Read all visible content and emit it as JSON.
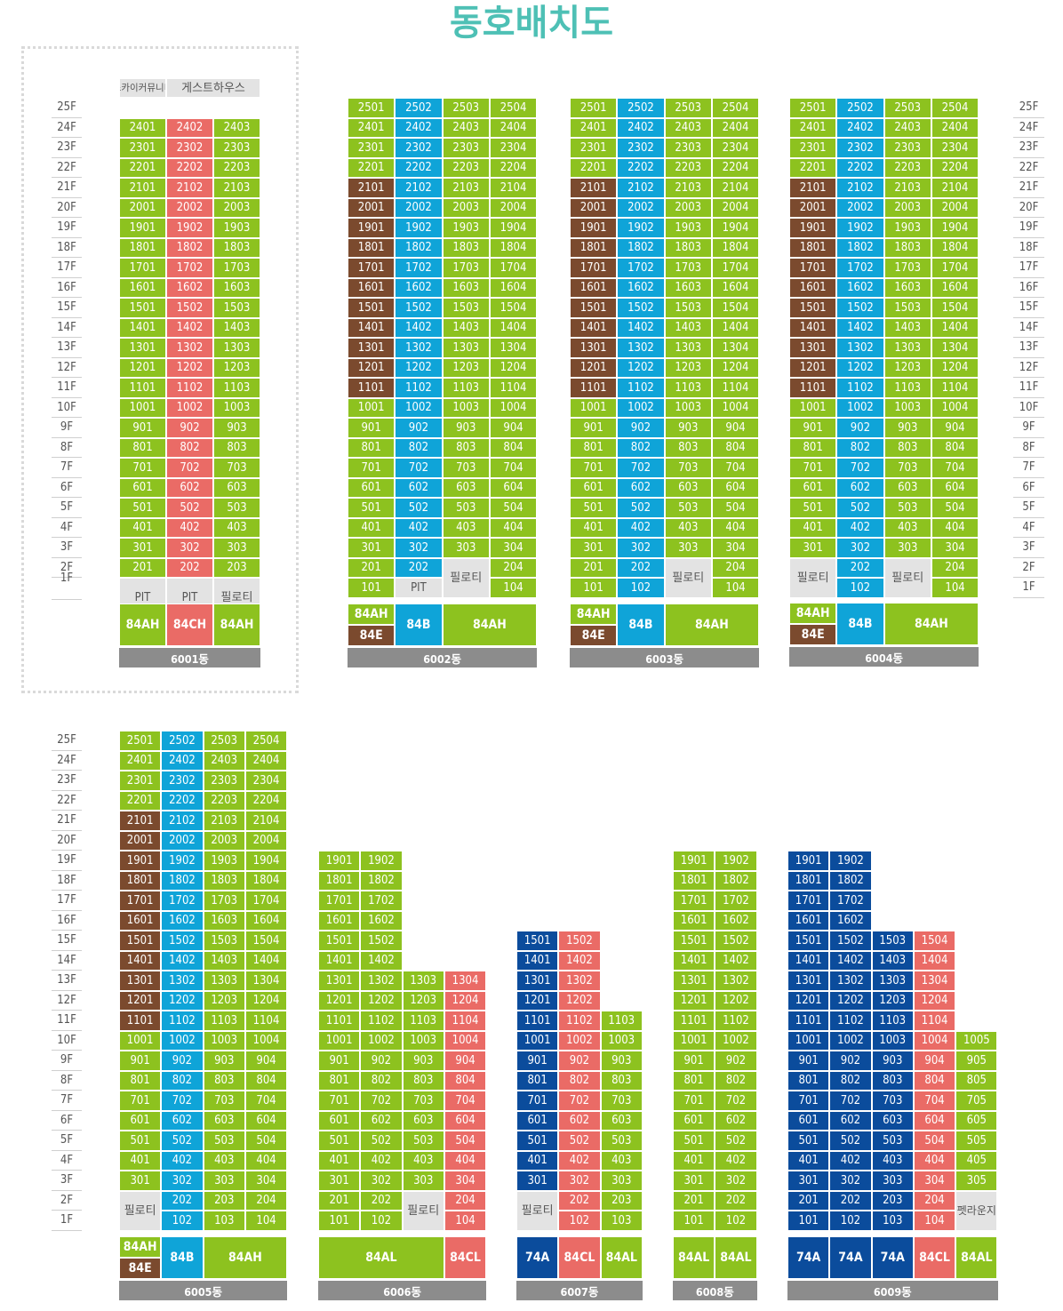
{
  "title": "동호배치도",
  "colors": {
    "title": "#4ec0b5",
    "green": "#8dc21f",
    "blue": "#0fa4d8",
    "salmon": "#ea6b66",
    "brown": "#7b4a2e",
    "navy": "#0b4c9c",
    "gray": "#e3e3e3",
    "bar": "#8c8c8c",
    "dark_text": "#555555"
  },
  "floor_labels": [
    "25F",
    "24F",
    "23F",
    "22F",
    "21F",
    "20F",
    "19F",
    "18F",
    "17F",
    "16F",
    "15F",
    "14F",
    "13F",
    "12F",
    "11F",
    "10F",
    "9F",
    "8F",
    "7F",
    "6F",
    "5F",
    "4F",
    "3F",
    "2F",
    "1F"
  ],
  "types_legend": [
    "84AH",
    "84B",
    "84E",
    "84CH",
    "84AL",
    "84CL",
    "74A"
  ],
  "buildings": [
    {
      "name": "6001동",
      "header": [
        "스카이커뮤니티",
        "게스트하우스"
      ],
      "columns": [
        {
          "color": "green",
          "units": [
            "2401",
            "2301",
            "2201",
            "2101",
            "2001",
            "1901",
            "1801",
            "1701",
            "1601",
            "1501",
            "1401",
            "1301",
            "1201",
            "1101",
            "1001",
            "901",
            "801",
            "701",
            "601",
            "501",
            "401",
            "301",
            "201"
          ],
          "bottom": "PIT"
        },
        {
          "color": "salmon",
          "units": [
            "2402",
            "2302",
            "2202",
            "2102",
            "2002",
            "1902",
            "1802",
            "1702",
            "1602",
            "1502",
            "1402",
            "1302",
            "1202",
            "1102",
            "1002",
            "902",
            "802",
            "702",
            "602",
            "502",
            "402",
            "302",
            "202"
          ],
          "bottom": "PIT"
        },
        {
          "color": "green",
          "units": [
            "2403",
            "2303",
            "2203",
            "2103",
            "2003",
            "1903",
            "1803",
            "1703",
            "1603",
            "1503",
            "1403",
            "1303",
            "1203",
            "1103",
            "1003",
            "903",
            "803",
            "703",
            "603",
            "503",
            "403",
            "303",
            "203"
          ],
          "bottom": "필로티"
        }
      ],
      "types": [
        "84AH",
        "84CH",
        "84AH"
      ]
    },
    {
      "name": "6002동",
      "lines": [
        "01",
        "02",
        "03",
        "04"
      ],
      "top_floor": 25,
      "brown_floors": [
        11,
        21
      ],
      "piloti": "필로티",
      "pit": "PIT",
      "types": [
        "84AH",
        "84E",
        "84B",
        "84AH"
      ]
    },
    {
      "name": "6003동",
      "lines": [
        "01",
        "02",
        "03",
        "04"
      ],
      "top_floor": 25,
      "brown_floors": [
        11,
        21
      ],
      "piloti": "필로티",
      "types": [
        "84AH",
        "84E",
        "84B",
        "84AH"
      ]
    },
    {
      "name": "6004동",
      "lines": [
        "01",
        "02",
        "03",
        "04"
      ],
      "top_floor": 25,
      "brown_floors": [
        11,
        21
      ],
      "piloti": "필로티",
      "types": [
        "84AH",
        "84E",
        "84B",
        "84AH"
      ]
    },
    {
      "name": "6005동",
      "lines": [
        "01",
        "02",
        "03",
        "04"
      ],
      "top_floor": 25,
      "brown_floors": [
        11,
        21
      ],
      "piloti": "필로티",
      "types": [
        "84AH",
        "84E",
        "84B",
        "84AH"
      ]
    },
    {
      "name": "6006동",
      "lines": [
        "01",
        "02",
        "03",
        "04"
      ],
      "tops": [
        19,
        19,
        13,
        13
      ],
      "piloti": "필로티",
      "types": [
        "84AL",
        "84CL"
      ]
    },
    {
      "name": "6007동",
      "lines": [
        "01",
        "02",
        "03"
      ],
      "tops": [
        15,
        15,
        11
      ],
      "piloti": "필로티",
      "types": [
        "74A",
        "84CL",
        "84AL"
      ]
    },
    {
      "name": "6008동",
      "lines": [
        "01",
        "02"
      ],
      "tops": [
        19,
        19
      ],
      "types": [
        "84AL",
        "84AL"
      ]
    },
    {
      "name": "6009동",
      "lines": [
        "01",
        "02",
        "03",
        "04",
        "05"
      ],
      "tops": [
        19,
        19,
        15,
        15,
        10
      ],
      "lounge": "펫라운지",
      "types": [
        "74A",
        "74A",
        "74A",
        "84CL",
        "84AL"
      ]
    }
  ]
}
